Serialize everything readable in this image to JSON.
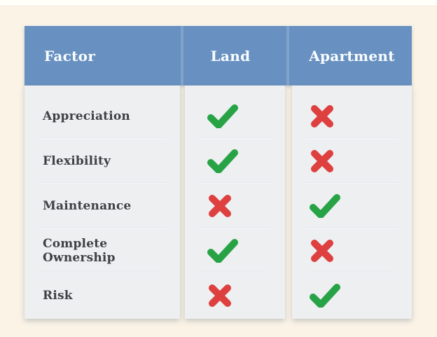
{
  "page": {
    "background_color": "#faf3e6",
    "top_strip_color": "#fffef9"
  },
  "table": {
    "header": {
      "background_color": "#6891c1",
      "text_color": "#fafdff",
      "columns": [
        "Factor",
        "Land",
        "Apartment"
      ]
    },
    "body": {
      "panel_color": "#edeff1",
      "divider_color": "#d6e0e7",
      "label_color": "#3e4245"
    },
    "icons": {
      "check_color": "#27a346",
      "cross_color": "#de3f3f"
    },
    "rows": [
      {
        "factor": "Appreciation",
        "land": "check",
        "apartment": "cross"
      },
      {
        "factor": "Flexibility",
        "land": "check",
        "apartment": "cross"
      },
      {
        "factor": "Maintenance",
        "land": "cross",
        "apartment": "check"
      },
      {
        "factor": "Complete Ownership",
        "land": "check",
        "apartment": "cross"
      },
      {
        "factor": "Risk",
        "land": "cross",
        "apartment": "check"
      }
    ]
  },
  "chart_data": {
    "type": "table",
    "title": "",
    "columns": [
      "Factor",
      "Land",
      "Apartment"
    ],
    "rows": [
      [
        "Appreciation",
        "yes",
        "no"
      ],
      [
        "Flexibility",
        "yes",
        "no"
      ],
      [
        "Maintenance",
        "no",
        "yes"
      ],
      [
        "Complete Ownership",
        "yes",
        "no"
      ],
      [
        "Risk",
        "no",
        "yes"
      ]
    ],
    "legend_position": "none",
    "grid": false
  }
}
